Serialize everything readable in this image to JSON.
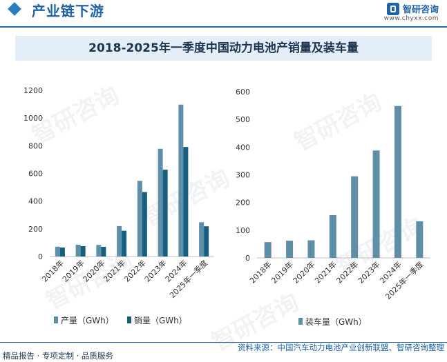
{
  "header": {
    "section_title": "产业链下游",
    "brand_name": "智研咨询",
    "brand_url": "www.chyxx.com"
  },
  "main_title": "2018-2025年一季度中国动力电池产销量及装车量",
  "footer": {
    "left": "精品报告 · 专项定制 · 品质服务",
    "right": "资料来源：中国汽车动力电池产业创新联盟、智研咨询整理"
  },
  "watermark": "智研咨询",
  "colors": {
    "production": "#5f8fa8",
    "sales": "#165f7f",
    "installed": "#5f8fa8",
    "brand": "#1e63a8"
  },
  "chart_data": [
    {
      "type": "bar",
      "categories": [
        "2018年",
        "2019年",
        "2020年",
        "2021年",
        "2022年",
        "2023年",
        "2024年",
        "2025年一季度"
      ],
      "series": [
        {
          "name": "产量（GWh）",
          "values": [
            70.6,
            85.4,
            83.4,
            219.7,
            545.9,
            778.1,
            1096.8,
            247.0
          ]
        },
        {
          "name": "销量（GWh）",
          "values": [
            65.0,
            75.0,
            70.0,
            186.0,
            465.5,
            627.0,
            791.0,
            218.0
          ]
        }
      ],
      "ylim": [
        0,
        1200
      ],
      "yticks": [
        0,
        200,
        400,
        600,
        800,
        1000,
        1200
      ],
      "legend_position": "bottom"
    },
    {
      "type": "bar",
      "categories": [
        "2018年",
        "2019年",
        "2020年",
        "2021年",
        "2022年",
        "2023年",
        "2024年",
        "2025年一季度"
      ],
      "series": [
        {
          "name": "装车量（GWh）",
          "values": [
            56.9,
            62.2,
            63.6,
            154.5,
            294.6,
            387.7,
            548.4,
            132.0
          ]
        }
      ],
      "ylim": [
        0,
        600
      ],
      "yticks": [
        0,
        100,
        200,
        300,
        400,
        500,
        600
      ],
      "legend_position": "bottom"
    }
  ]
}
